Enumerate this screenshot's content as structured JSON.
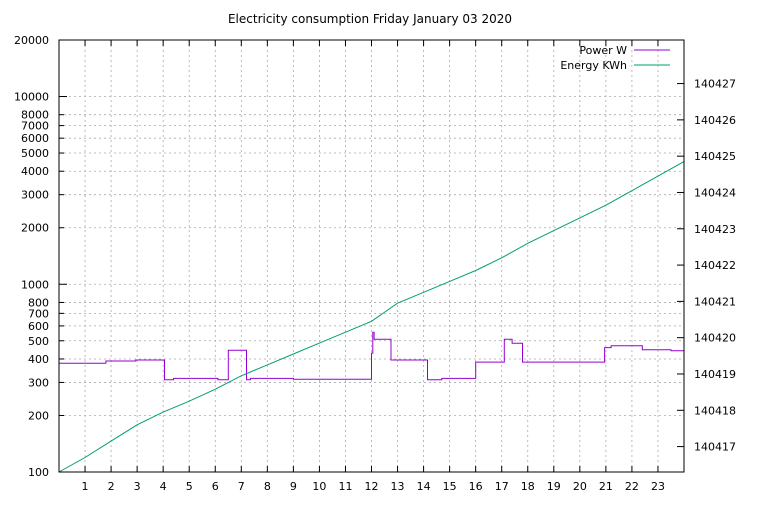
{
  "chart_data": {
    "type": "line",
    "title": "Electricity consumption Friday January 03 2020",
    "xlabel": "",
    "ylabel": "",
    "y2label": "",
    "grid": true,
    "legend_position": "top-right",
    "x_range": [
      0,
      24
    ],
    "x_ticks": [
      1,
      2,
      3,
      4,
      5,
      6,
      7,
      8,
      9,
      10,
      11,
      12,
      13,
      14,
      15,
      16,
      17,
      18,
      19,
      20,
      21,
      22,
      23
    ],
    "y_scale": "log",
    "y_range": [
      100,
      20000
    ],
    "y_ticks": [
      100,
      200,
      300,
      400,
      500,
      600,
      700,
      800,
      1000,
      2000,
      3000,
      4000,
      5000,
      6000,
      7000,
      8000,
      10000,
      20000
    ],
    "y2_range": [
      140416.3,
      140428.2
    ],
    "y2_ticks": [
      140417,
      140418,
      140419,
      140420,
      140421,
      140422,
      140423,
      140424,
      140425,
      140426,
      140427
    ],
    "series": [
      {
        "name": "Power W",
        "axis": "left",
        "color": "#9400d3",
        "style": "steps",
        "points": [
          [
            0,
            380
          ],
          [
            1.8,
            380
          ],
          [
            1.8,
            390
          ],
          [
            2.95,
            390
          ],
          [
            2.95,
            395
          ],
          [
            4.05,
            395
          ],
          [
            4.05,
            310
          ],
          [
            4.4,
            310
          ],
          [
            4.4,
            315
          ],
          [
            6.1,
            315
          ],
          [
            6.1,
            310
          ],
          [
            6.5,
            310
          ],
          [
            6.5,
            445
          ],
          [
            7.2,
            445
          ],
          [
            7.2,
            310
          ],
          [
            7.35,
            310
          ],
          [
            7.35,
            315
          ],
          [
            9.0,
            315
          ],
          [
            9.0,
            312
          ],
          [
            12.0,
            312
          ],
          [
            12.0,
            430
          ],
          [
            12.05,
            430
          ],
          [
            12.05,
            555
          ],
          [
            12.1,
            555
          ],
          [
            12.1,
            510
          ],
          [
            12.75,
            510
          ],
          [
            12.75,
            395
          ],
          [
            14.15,
            395
          ],
          [
            14.15,
            310
          ],
          [
            14.7,
            310
          ],
          [
            14.7,
            315
          ],
          [
            16.0,
            315
          ],
          [
            16.0,
            385
          ],
          [
            17.1,
            385
          ],
          [
            17.1,
            510
          ],
          [
            17.4,
            510
          ],
          [
            17.4,
            485
          ],
          [
            17.8,
            485
          ],
          [
            17.8,
            385
          ],
          [
            20.95,
            385
          ],
          [
            20.95,
            460
          ],
          [
            21.2,
            460
          ],
          [
            21.2,
            470
          ],
          [
            22.4,
            470
          ],
          [
            22.4,
            448
          ],
          [
            23.5,
            448
          ],
          [
            23.5,
            442
          ],
          [
            24,
            442
          ]
        ]
      },
      {
        "name": "Energy KWh",
        "axis": "right",
        "color": "#009e73",
        "style": "lines",
        "points": [
          [
            0,
            140416.3
          ],
          [
            1,
            140416.7
          ],
          [
            2,
            140417.15
          ],
          [
            3,
            140417.6
          ],
          [
            4,
            140417.95
          ],
          [
            5,
            140418.25
          ],
          [
            6,
            140418.58
          ],
          [
            7,
            140418.95
          ],
          [
            8,
            140419.25
          ],
          [
            9,
            140419.55
          ],
          [
            10,
            140419.85
          ],
          [
            11,
            140420.15
          ],
          [
            12,
            140420.45
          ],
          [
            13,
            140420.95
          ],
          [
            14,
            140421.25
          ],
          [
            15,
            140421.55
          ],
          [
            16,
            140421.85
          ],
          [
            17,
            140422.2
          ],
          [
            18,
            140422.6
          ],
          [
            19,
            140422.95
          ],
          [
            20,
            140423.3
          ],
          [
            21,
            140423.65
          ],
          [
            22,
            140424.05
          ],
          [
            23,
            140424.45
          ],
          [
            24,
            140424.85
          ]
        ]
      }
    ]
  }
}
